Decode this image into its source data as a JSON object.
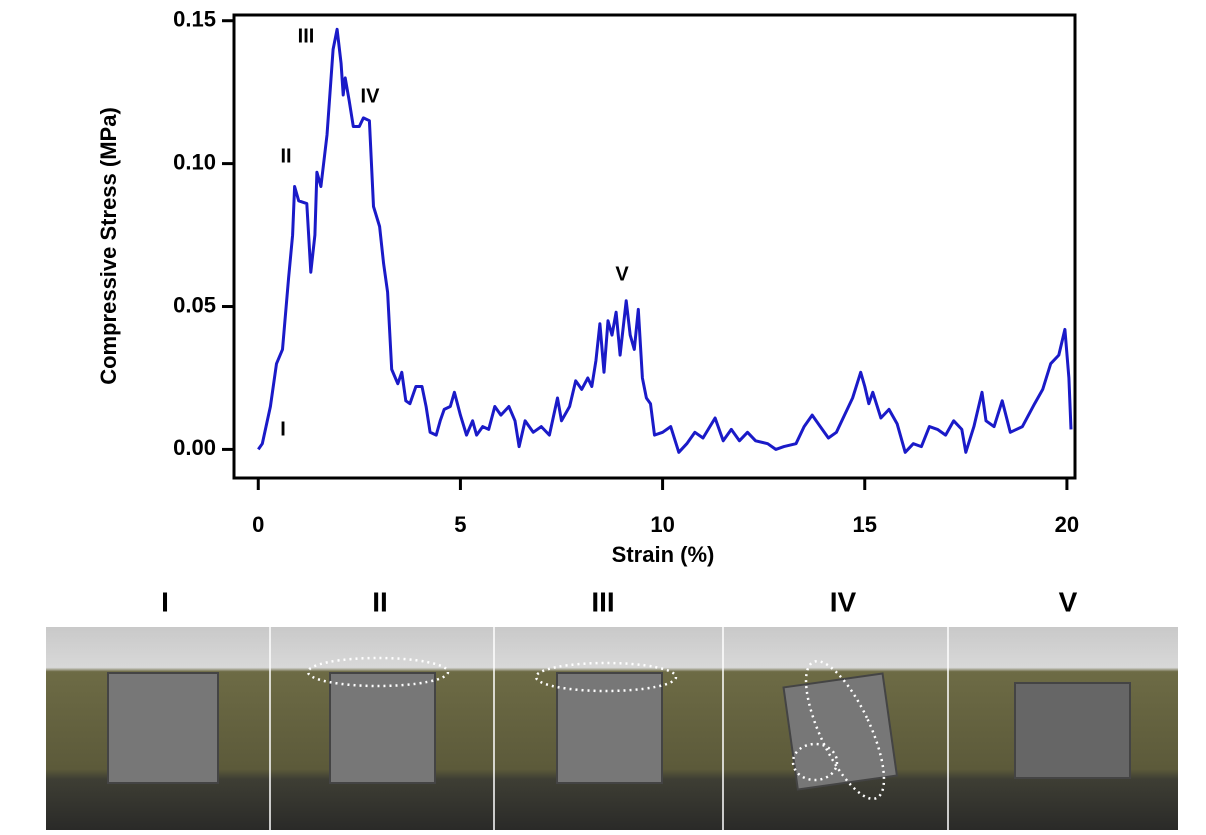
{
  "chart_data": {
    "type": "line",
    "xlabel": "Strain (%)",
    "ylabel": "Compressive Stress (MPa)",
    "color": "#1a1ac8",
    "xlim": [
      -0.6,
      20.2
    ],
    "ylim": [
      -0.01,
      0.152
    ],
    "xticks": [
      0,
      5,
      10,
      15,
      20
    ],
    "yticks": [
      {
        "value": 0,
        "label": "0.00"
      },
      0.05,
      {
        "value": 0.1,
        "label": "0.10"
      },
      0.15
    ],
    "annotations": [
      "I",
      "II",
      "III",
      "IV",
      "V"
    ],
    "x": [
      0,
      0.1,
      0.3,
      0.45,
      0.6,
      0.75,
      0.85,
      0.9,
      1.0,
      1.2,
      1.3,
      1.4,
      1.45,
      1.55,
      1.7,
      1.85,
      1.95,
      2.05,
      2.1,
      2.15,
      2.25,
      2.35,
      2.5,
      2.6,
      2.75,
      2.85,
      3.0,
      3.1,
      3.2,
      3.3,
      3.45,
      3.55,
      3.65,
      3.75,
      3.9,
      4.05,
      4.15,
      4.25,
      4.4,
      4.5,
      4.6,
      4.75,
      4.85,
      5.0,
      5.15,
      5.3,
      5.4,
      5.55,
      5.7,
      5.85,
      6.0,
      6.2,
      6.35,
      6.45,
      6.6,
      6.8,
      7.0,
      7.2,
      7.4,
      7.5,
      7.7,
      7.85,
      8.0,
      8.15,
      8.25,
      8.35,
      8.45,
      8.55,
      8.65,
      8.75,
      8.85,
      8.95,
      9.1,
      9.2,
      9.3,
      9.4,
      9.5,
      9.6,
      9.7,
      9.8,
      10.0,
      10.2,
      10.4,
      10.6,
      10.8,
      11.0,
      11.3,
      11.5,
      11.7,
      11.9,
      12.1,
      12.3,
      12.6,
      12.8,
      13.0,
      13.3,
      13.5,
      13.7,
      13.9,
      14.1,
      14.3,
      14.5,
      14.7,
      14.9,
      15.0,
      15.1,
      15.2,
      15.4,
      15.6,
      15.8,
      16.0,
      16.2,
      16.4,
      16.6,
      16.8,
      17.0,
      17.2,
      17.4,
      17.5,
      17.7,
      17.9,
      18.0,
      18.2,
      18.4,
      18.6,
      18.9,
      19.2,
      19.4,
      19.6,
      19.8,
      19.95,
      20.05,
      20.1
    ],
    "values": [
      0,
      0.002,
      0.015,
      0.03,
      0.035,
      0.06,
      0.075,
      0.092,
      0.087,
      0.086,
      0.062,
      0.075,
      0.097,
      0.092,
      0.11,
      0.14,
      0.147,
      0.135,
      0.124,
      0.13,
      0.122,
      0.113,
      0.113,
      0.116,
      0.115,
      0.085,
      0.078,
      0.065,
      0.055,
      0.028,
      0.023,
      0.027,
      0.017,
      0.016,
      0.022,
      0.022,
      0.015,
      0.006,
      0.005,
      0.01,
      0.014,
      0.015,
      0.02,
      0.012,
      0.005,
      0.01,
      0.005,
      0.008,
      0.007,
      0.015,
      0.012,
      0.015,
      0.01,
      0.001,
      0.01,
      0.006,
      0.008,
      0.005,
      0.018,
      0.01,
      0.015,
      0.024,
      0.021,
      0.025,
      0.022,
      0.031,
      0.044,
      0.027,
      0.045,
      0.04,
      0.048,
      0.033,
      0.052,
      0.04,
      0.035,
      0.049,
      0.025,
      0.018,
      0.016,
      0.005,
      0.006,
      0.008,
      -0.001,
      0.002,
      0.006,
      0.004,
      0.011,
      0.003,
      0.007,
      0.003,
      0.006,
      0.003,
      0.002,
      0,
      0.001,
      0.002,
      0.008,
      0.012,
      0.008,
      0.004,
      0.006,
      0.012,
      0.018,
      0.027,
      0.022,
      0.016,
      0.02,
      0.011,
      0.014,
      0.009,
      -0.001,
      0.002,
      0.001,
      0.008,
      0.007,
      0.005,
      0.01,
      0.007,
      -0.001,
      0.008,
      0.02,
      0.01,
      0.008,
      0.017,
      0.006,
      0.008,
      0.016,
      0.021,
      0.03,
      0.033,
      0.042,
      0.025,
      0.007
    ]
  },
  "photo_panels": {
    "labels": [
      "I",
      "II",
      "III",
      "IV",
      "V"
    ]
  }
}
